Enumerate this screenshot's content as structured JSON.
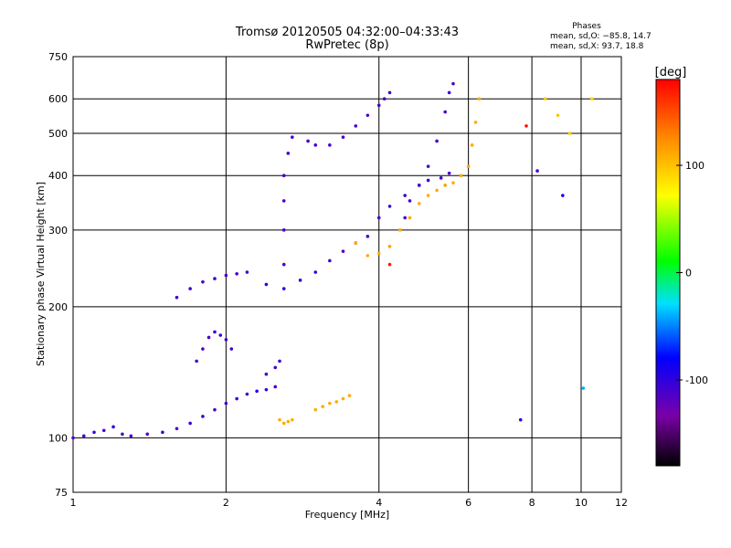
{
  "chart_data": {
    "type": "scatter",
    "title": "Tromsø 20120505 04:32:00–04:33:43",
    "subtitle": "RwPretec (8p)",
    "xlabel": "Frequency [MHz]",
    "ylabel": "Stationary phase Virtual Height [km]",
    "x_scale": "log",
    "y_scale": "log",
    "xlim": [
      1,
      12
    ],
    "ylim": [
      75,
      750
    ],
    "x_ticks": [
      1,
      2,
      4,
      6,
      8,
      10,
      12
    ],
    "y_ticks": [
      75,
      100,
      200,
      300,
      400,
      500,
      600,
      750
    ],
    "grid": true,
    "stats": {
      "heading": "Phases",
      "line_o": "mean, sd,O: −85.8, 14.7",
      "line_x": "mean, sd,X: 93.7, 18.8"
    },
    "colorbar": {
      "label": "[deg]",
      "range": [
        -180,
        180
      ],
      "ticks": [
        100,
        0,
        -100
      ]
    },
    "series": [
      {
        "points": [
          [
            1.0,
            100,
            -110
          ],
          [
            1.05,
            101,
            -110
          ],
          [
            1.1,
            103,
            -110
          ],
          [
            1.15,
            104,
            -110
          ],
          [
            1.2,
            106,
            -105
          ],
          [
            1.25,
            102,
            -110
          ],
          [
            1.3,
            101,
            -110
          ],
          [
            1.4,
            102,
            -110
          ],
          [
            1.5,
            103,
            -105
          ],
          [
            1.6,
            105,
            -110
          ],
          [
            1.7,
            108,
            -105
          ],
          [
            1.8,
            112,
            -105
          ],
          [
            1.9,
            116,
            -110
          ],
          [
            2.0,
            120,
            -105
          ],
          [
            2.1,
            123,
            -105
          ],
          [
            2.2,
            126,
            -110
          ],
          [
            2.3,
            128,
            -100
          ],
          [
            2.4,
            129,
            -105
          ],
          [
            2.5,
            131,
            -110
          ]
        ]
      },
      {
        "points": [
          [
            1.75,
            150,
            -110
          ],
          [
            1.8,
            160,
            -110
          ],
          [
            1.85,
            170,
            -110
          ],
          [
            1.9,
            175,
            -105
          ],
          [
            1.95,
            172,
            -105
          ],
          [
            2.0,
            168,
            -105
          ],
          [
            2.05,
            160,
            -105
          ],
          [
            2.4,
            140,
            -110
          ],
          [
            2.5,
            145,
            -110
          ],
          [
            2.55,
            150,
            -105
          ]
        ]
      },
      {
        "points": [
          [
            2.55,
            110,
            110
          ],
          [
            2.6,
            108,
            110
          ],
          [
            2.65,
            109,
            110
          ],
          [
            2.7,
            110,
            110
          ],
          [
            3.0,
            116,
            110
          ],
          [
            3.1,
            118,
            110
          ],
          [
            3.2,
            120,
            110
          ],
          [
            3.3,
            121,
            110
          ],
          [
            3.4,
            123,
            110
          ],
          [
            3.5,
            125,
            110
          ]
        ]
      },
      {
        "points": [
          [
            1.6,
            210,
            -110
          ],
          [
            1.7,
            220,
            -110
          ],
          [
            1.8,
            228,
            -110
          ],
          [
            1.9,
            232,
            -105
          ],
          [
            2.0,
            236,
            -110
          ],
          [
            2.1,
            238,
            -110
          ],
          [
            2.2,
            240,
            -105
          ],
          [
            2.4,
            225,
            -100
          ],
          [
            2.6,
            220,
            -100
          ],
          [
            2.8,
            230,
            -105
          ],
          [
            3.0,
            240,
            -105
          ],
          [
            3.2,
            255,
            -110
          ],
          [
            3.4,
            268,
            -110
          ],
          [
            3.6,
            280,
            -110
          ],
          [
            3.8,
            290,
            -110
          ],
          [
            4.0,
            320,
            -110
          ],
          [
            4.2,
            340,
            -110
          ],
          [
            4.5,
            360,
            -105
          ],
          [
            4.8,
            380,
            -110
          ],
          [
            5.0,
            390,
            -110
          ],
          [
            5.3,
            395,
            -110
          ],
          [
            5.5,
            405,
            -110
          ]
        ]
      },
      {
        "points": [
          [
            2.6,
            250,
            -110
          ],
          [
            2.6,
            300,
            -110
          ],
          [
            2.6,
            350,
            -110
          ],
          [
            2.6,
            400,
            -110
          ],
          [
            2.65,
            450,
            -110
          ],
          [
            2.7,
            490,
            -110
          ],
          [
            2.9,
            480,
            -110
          ],
          [
            3.0,
            470,
            -110
          ],
          [
            3.2,
            470,
            -110
          ],
          [
            3.4,
            490,
            -110
          ],
          [
            3.6,
            520,
            -110
          ],
          [
            3.8,
            550,
            -110
          ],
          [
            4.0,
            580,
            -110
          ],
          [
            4.1,
            600,
            -110
          ],
          [
            4.2,
            620,
            -110
          ]
        ]
      },
      {
        "points": [
          [
            4.5,
            320,
            -110
          ],
          [
            4.6,
            350,
            -110
          ],
          [
            4.8,
            380,
            -110
          ],
          [
            5.0,
            420,
            -110
          ],
          [
            5.2,
            480,
            -110
          ],
          [
            5.4,
            560,
            -110
          ],
          [
            5.5,
            620,
            -110
          ],
          [
            5.6,
            650,
            -110
          ]
        ]
      },
      {
        "points": [
          [
            3.6,
            280,
            110
          ],
          [
            3.8,
            262,
            110
          ],
          [
            4.0,
            265,
            110
          ],
          [
            4.2,
            275,
            115
          ],
          [
            4.4,
            300,
            110
          ],
          [
            4.6,
            320,
            110
          ],
          [
            4.8,
            345,
            110
          ],
          [
            5.0,
            360,
            110
          ],
          [
            5.2,
            370,
            110
          ],
          [
            5.4,
            380,
            115
          ],
          [
            5.6,
            385,
            110
          ],
          [
            5.8,
            400,
            110
          ],
          [
            6.0,
            420,
            115
          ],
          [
            6.1,
            470,
            110
          ],
          [
            6.2,
            530,
            110
          ],
          [
            6.3,
            600,
            110
          ]
        ]
      },
      {
        "points": [
          [
            8.5,
            600,
            95
          ],
          [
            9.0,
            550,
            100
          ],
          [
            9.5,
            500,
            95
          ],
          [
            10.5,
            600,
            90
          ],
          [
            7.8,
            520,
            175
          ],
          [
            8.2,
            410,
            -110
          ],
          [
            9.2,
            360,
            -90
          ],
          [
            4.2,
            250,
            170
          ],
          [
            7.6,
            110,
            -100
          ],
          [
            10.1,
            130,
            -40
          ]
        ]
      }
    ]
  }
}
